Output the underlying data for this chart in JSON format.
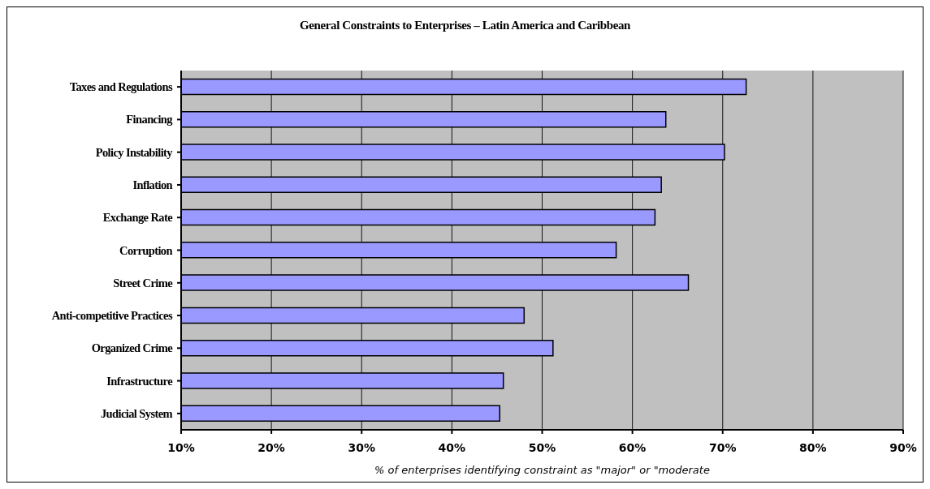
{
  "chart_data": {
    "type": "bar",
    "orientation": "horizontal",
    "title": "General Constraints to Enterprises – Latin America and Caribbean",
    "xlabel": "% of enterprises identifying constraint as \"major\" or \"moderate",
    "categories": [
      "Taxes and Regulations",
      "Financing",
      "Policy Instability",
      "Inflation",
      "Exchange Rate",
      "Corruption",
      "Street Crime",
      "Anti-competitive Practices",
      "Organized Crime",
      "Infrastructure",
      "Judicial System"
    ],
    "values": [
      72.6,
      63.7,
      70.2,
      63.2,
      62.5,
      58.2,
      66.2,
      48.0,
      51.2,
      45.7,
      45.3
    ],
    "color": "#9999ff",
    "xlim": [
      10,
      90
    ],
    "xticks": [
      {
        "value": 10,
        "label": "10%"
      },
      {
        "value": 20,
        "label": "20%"
      },
      {
        "value": 30,
        "label": "30%"
      },
      {
        "value": 40,
        "label": "40%"
      },
      {
        "value": 50,
        "label": "50%"
      },
      {
        "value": 60,
        "label": "60%"
      },
      {
        "value": 70,
        "label": "70%"
      },
      {
        "value": 80,
        "label": "80%"
      },
      {
        "value": 90,
        "label": "90%"
      }
    ],
    "grid": "x",
    "legend": false
  }
}
